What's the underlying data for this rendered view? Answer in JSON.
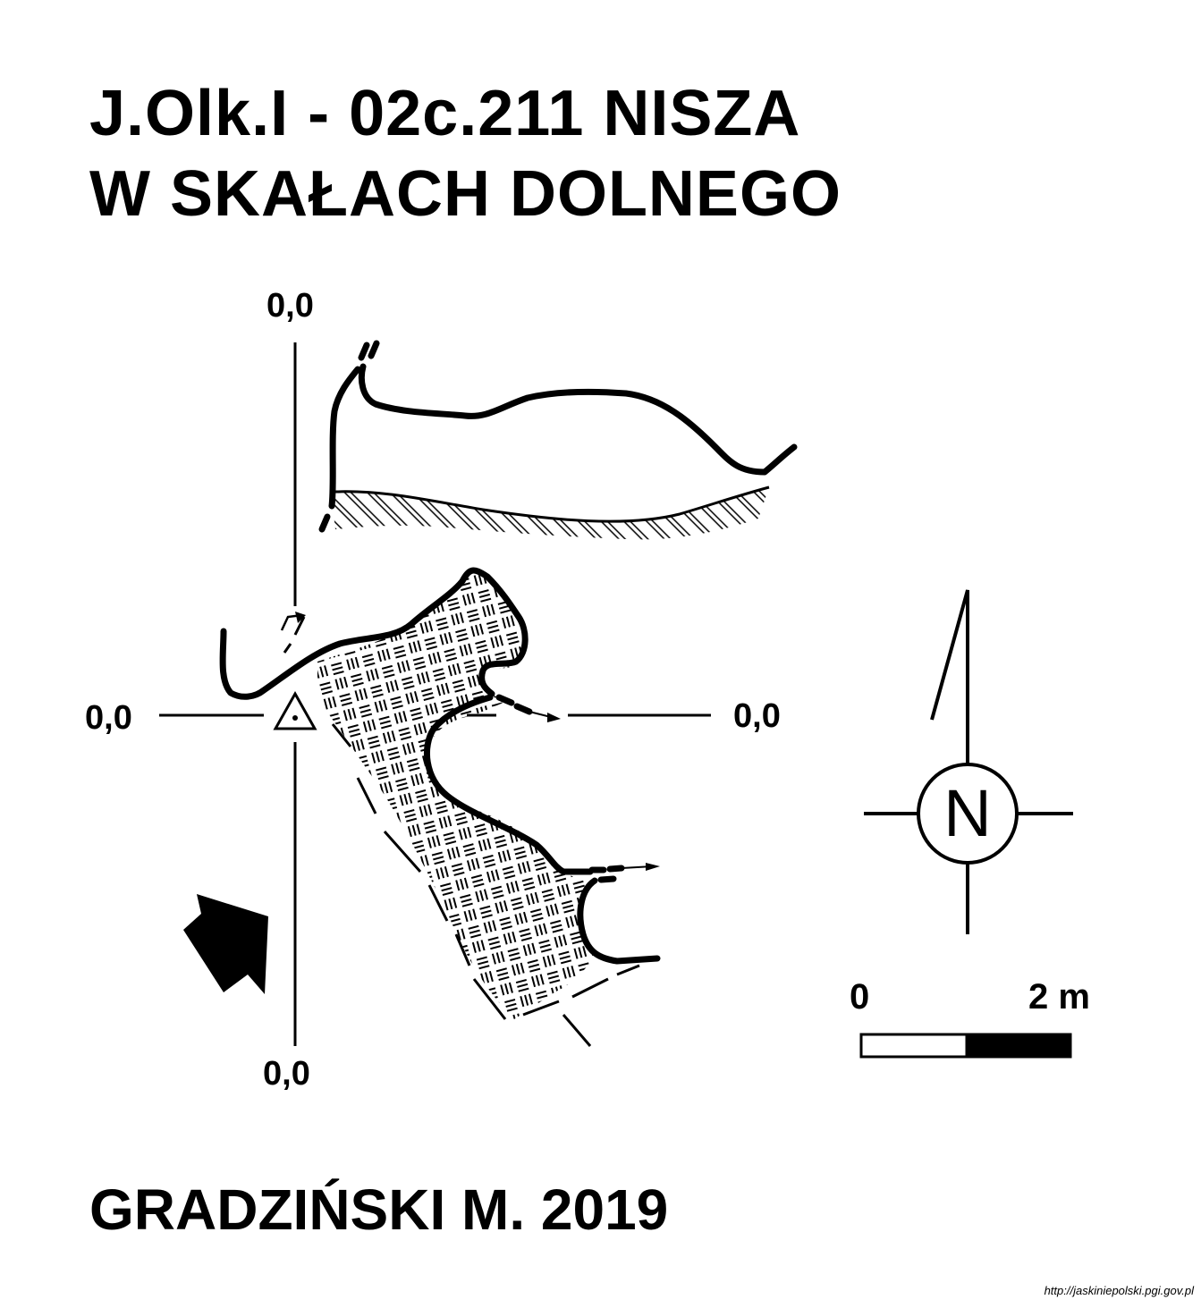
{
  "title": {
    "line1": "J.Olk.I - 02c.211  NISZA",
    "line2": "W SKAŁACH DOLNEGO"
  },
  "datum_labels": {
    "top": "0,0",
    "left": "0,0",
    "right": "0,0",
    "bottom": "0,0"
  },
  "north_arrow": {
    "label": "N"
  },
  "scale_bar": {
    "start_label": "0",
    "end_label": "2 m"
  },
  "author": "GRADZIŃSKI M. 2019",
  "source_url": "http://jaskiniepolski.pgi.gov.pl",
  "icons": {
    "datum_point": "triangle-with-dot-icon",
    "entrance_direction": "arrow-icon",
    "north": "compass-rose-icon"
  },
  "colors": {
    "ink": "#000000",
    "paper": "#ffffff"
  }
}
